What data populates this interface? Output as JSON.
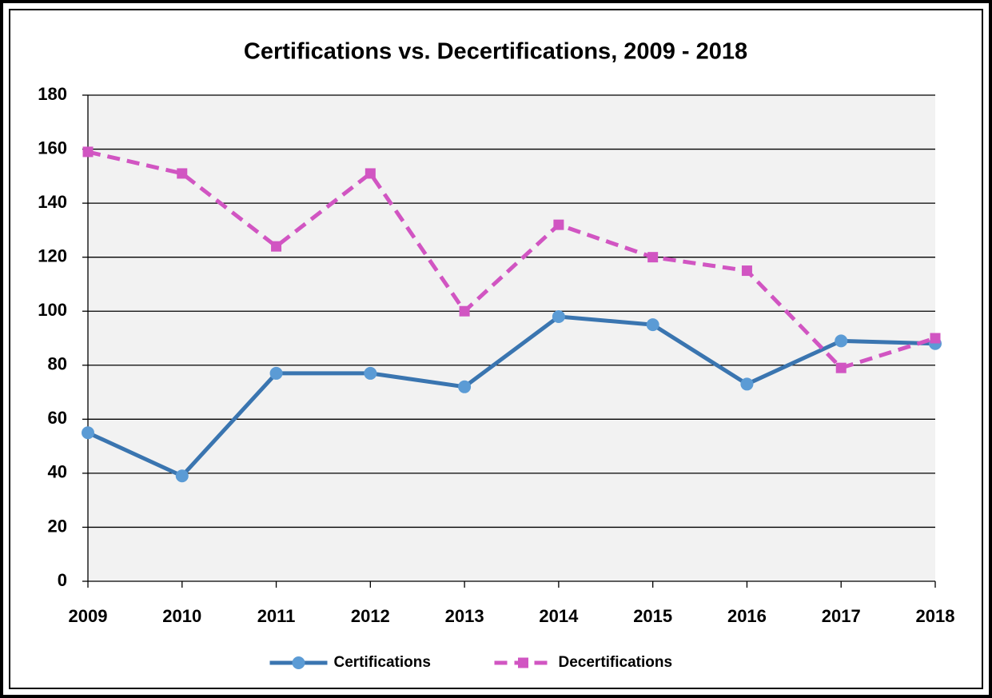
{
  "chart_data": {
    "type": "line",
    "title": "Certifications vs. Decertifications, 2009 - 2018",
    "categories": [
      "2009",
      "2010",
      "2011",
      "2012",
      "2013",
      "2014",
      "2015",
      "2016",
      "2017",
      "2018"
    ],
    "series": [
      {
        "name": "Certifications",
        "color": "#3a75b0",
        "marker_color": "#5b9bd5",
        "marker": "circle",
        "dashed": false,
        "values": [
          55,
          39,
          77,
          77,
          72,
          98,
          95,
          73,
          89,
          88
        ]
      },
      {
        "name": "Decertifications",
        "color": "#d155c2",
        "marker_color": "#d155c2",
        "marker": "square",
        "dashed": true,
        "values": [
          159,
          151,
          124,
          151,
          100,
          132,
          120,
          115,
          79,
          90
        ]
      }
    ],
    "ylim": [
      0,
      180
    ],
    "yticks": [
      0,
      20,
      40,
      60,
      80,
      100,
      120,
      140,
      160,
      180
    ],
    "grid": true,
    "legend": "bottom"
  }
}
